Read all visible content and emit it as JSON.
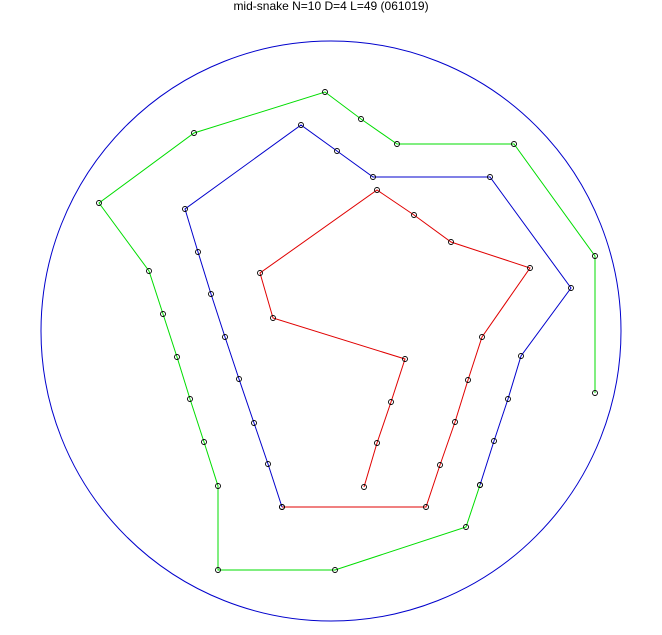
{
  "title": "mid-snake N=10 D=4 L=49 (061019)",
  "colors": {
    "boundary": "#0000cc",
    "segment_1": "#e00000",
    "segment_2": "#0000cc",
    "segment_3": "#00dd00",
    "node": "#000000"
  }
}
